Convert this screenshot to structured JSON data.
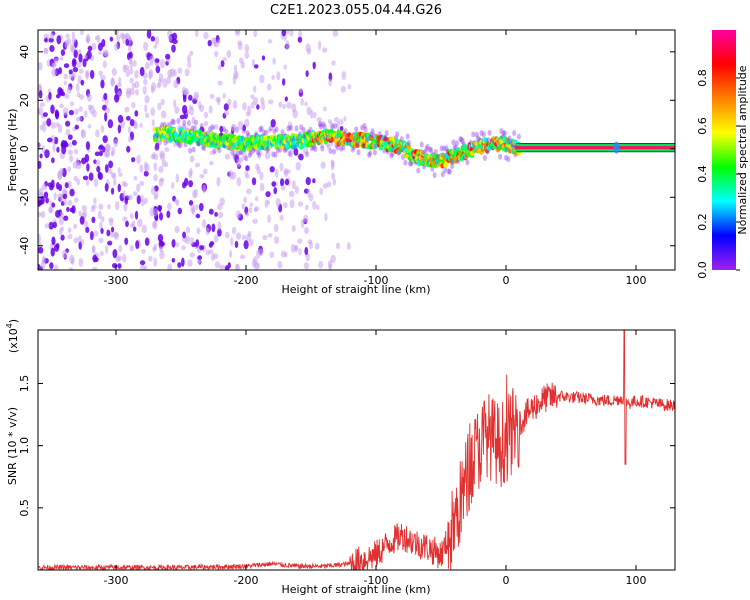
{
  "title": "C2E1.2023.055.04.44.G26",
  "colors": {
    "snr_line": "#e03030",
    "center_line": "#006400",
    "axis": "#000000"
  },
  "chart_data": [
    {
      "type": "heatmap",
      "name": "spectrogram",
      "xlabel": "Height of straight line (km)",
      "ylabel": "Frequency (Hz)",
      "xlim": [
        -360,
        130
      ],
      "ylim": [
        -50,
        49
      ],
      "x_ticks": [
        -300,
        -200,
        -100,
        0,
        100
      ],
      "y_ticks": [
        -40,
        -20,
        0,
        20,
        40
      ],
      "colorbar": {
        "label": "Normalized spectral amplitude",
        "range": [
          0,
          1
        ],
        "ticks": [
          "0.0",
          "0.2",
          "0.4",
          "0.6",
          "0.8"
        ],
        "colormap": [
          "#a020f0",
          "#0000ff",
          "#00ffff",
          "#00ff00",
          "#ffff00",
          "#ff8000",
          "#ff0000",
          "#ff00a0"
        ]
      },
      "track": {
        "x": [
          -260,
          -240,
          -220,
          -200,
          -180,
          -160,
          -140,
          -120,
          -100,
          -90,
          -80,
          -70,
          -60,
          -50,
          -40,
          -30,
          -20,
          -10,
          0,
          10,
          130
        ],
        "y": [
          6,
          5,
          3,
          2,
          3,
          3,
          5,
          4,
          3,
          2,
          1,
          -3,
          -5,
          -5,
          -3,
          -1,
          1,
          2,
          2,
          0.5,
          0.5
        ]
      },
      "noise_region": [
        -360,
        -140
      ]
    },
    {
      "type": "line",
      "name": "snr",
      "xlabel": "Height of straight line (km)",
      "ylabel": "SNR (10 * v/v)",
      "multiplier_label_base": "(x10",
      "multiplier_label_exp": "4",
      "xlim": [
        -360,
        130
      ],
      "ylim": [
        0,
        1.93
      ],
      "x_ticks": [
        -300,
        -200,
        -100,
        0,
        100
      ],
      "y_ticks": [
        "0.5",
        "1.0",
        "1.5"
      ],
      "series": [
        {
          "x": [
            -360,
            -300,
            -250,
            -200,
            -180,
            -160,
            -140,
            -120,
            -100,
            -90,
            -80,
            -70,
            -60,
            -50,
            -40,
            -35,
            -30,
            -25,
            -20,
            -15,
            -10,
            -5,
            0,
            10,
            20,
            30,
            40,
            60,
            80,
            90,
            95,
            100,
            110,
            120,
            130
          ],
          "values": [
            0.02,
            0.02,
            0.02,
            0.03,
            0.05,
            0.03,
            0.03,
            0.05,
            0.12,
            0.22,
            0.28,
            0.22,
            0.18,
            0.12,
            0.35,
            0.55,
            0.75,
            0.9,
            1.0,
            1.1,
            1.05,
            1.0,
            1.05,
            1.18,
            1.3,
            1.38,
            1.4,
            1.38,
            1.36,
            1.38,
            1.34,
            1.36,
            1.35,
            1.33,
            1.32
          ]
        }
      ]
    }
  ]
}
